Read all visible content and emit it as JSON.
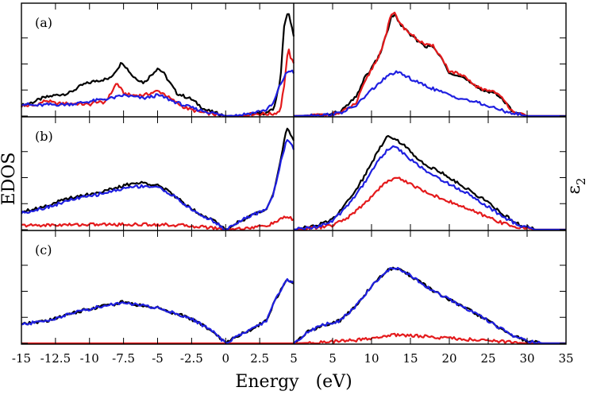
{
  "figure": {
    "xlabel": "Energy   (eV)",
    "left_ylabel": "EDOS",
    "right_ylabel": "ε",
    "right_ylabel_sub": "2"
  },
  "colors": {
    "black": "#000000",
    "red": "#e41a1c",
    "blue": "#1f1fe0"
  },
  "chart_data": [
    {
      "type": "line",
      "panel": "(a)",
      "subplot": "EDOS",
      "xlim": [
        -15,
        5
      ],
      "ylim": [
        0,
        1
      ],
      "series": [
        {
          "color": "black",
          "x": [
            -15,
            -14,
            -13.5,
            -12.5,
            -11.5,
            -10.5,
            -9.5,
            -8.5,
            -7.6,
            -6.8,
            -6,
            -5,
            -4.6,
            -3.6,
            -2.5,
            -1.5,
            -0.5,
            0,
            1,
            2,
            3,
            3.5,
            4,
            4.3,
            4.6,
            4.8,
            5
          ],
          "y": [
            0.1,
            0.14,
            0.17,
            0.2,
            0.22,
            0.3,
            0.34,
            0.36,
            0.52,
            0.38,
            0.32,
            0.46,
            0.42,
            0.22,
            0.16,
            0.06,
            0.02,
            0,
            0,
            0.02,
            0.03,
            0.06,
            0.32,
            0.88,
            1.0,
            0.88,
            0.78
          ]
        },
        {
          "color": "red",
          "x": [
            -15,
            -14,
            -13.2,
            -12.5,
            -11,
            -10,
            -9.5,
            -9,
            -8.5,
            -8,
            -7.5,
            -7,
            -6,
            -5,
            -4.6,
            -4,
            -3,
            -2,
            -1,
            0,
            1,
            2,
            3,
            3.5,
            4,
            4.3,
            4.6,
            4.8,
            5
          ],
          "y": [
            0.1,
            0.1,
            0.15,
            0.12,
            0.12,
            0.11,
            0.14,
            0.12,
            0.2,
            0.32,
            0.22,
            0.2,
            0.2,
            0.24,
            0.22,
            0.16,
            0.08,
            0.04,
            0.02,
            0,
            0,
            0.02,
            0.02,
            0.02,
            0.05,
            0.3,
            0.65,
            0.55,
            0.5
          ]
        },
        {
          "color": "blue",
          "x": [
            -15,
            -14,
            -13,
            -12,
            -11,
            -10,
            -9,
            -8,
            -7.5,
            -7,
            -6,
            -5,
            -4.5,
            -4,
            -3,
            -2,
            -1,
            0,
            1,
            2,
            3,
            3.5,
            4,
            4.5,
            4.8,
            5
          ],
          "y": [
            0.12,
            0.1,
            0.11,
            0.11,
            0.12,
            0.14,
            0.16,
            0.18,
            0.2,
            0.19,
            0.17,
            0.2,
            0.18,
            0.15,
            0.1,
            0.06,
            0.03,
            0,
            0.01,
            0.03,
            0.06,
            0.12,
            0.3,
            0.42,
            0.44,
            0.42
          ]
        }
      ]
    },
    {
      "type": "line",
      "panel": "(a)",
      "subplot": "ε2",
      "xlim": [
        0,
        35
      ],
      "ylim": [
        0,
        1
      ],
      "series": [
        {
          "color": "black",
          "x": [
            0,
            4,
            6,
            8,
            9,
            10,
            11,
            12,
            12.5,
            13,
            14,
            15,
            16,
            17,
            18,
            19,
            20,
            21,
            22,
            23,
            24,
            25,
            26,
            27,
            28,
            29,
            30,
            35
          ],
          "y": [
            0,
            0.01,
            0.04,
            0.18,
            0.35,
            0.46,
            0.58,
            0.8,
            0.95,
            0.97,
            0.85,
            0.78,
            0.72,
            0.67,
            0.66,
            0.55,
            0.42,
            0.4,
            0.36,
            0.3,
            0.25,
            0.24,
            0.22,
            0.14,
            0.06,
            0.02,
            0,
            0
          ]
        },
        {
          "color": "red",
          "x": [
            0,
            4,
            6,
            8,
            9,
            10,
            11,
            12,
            12.5,
            13,
            14,
            15,
            16,
            17,
            18,
            19,
            20,
            21,
            22,
            23,
            24,
            25,
            26,
            27,
            28,
            29,
            30,
            35
          ],
          "y": [
            0,
            0.01,
            0.03,
            0.12,
            0.3,
            0.45,
            0.58,
            0.82,
            0.97,
            0.98,
            0.86,
            0.79,
            0.73,
            0.68,
            0.67,
            0.56,
            0.43,
            0.41,
            0.37,
            0.31,
            0.26,
            0.25,
            0.23,
            0.15,
            0.06,
            0.02,
            0,
            0
          ]
        },
        {
          "color": "blue",
          "x": [
            0,
            4,
            6,
            8,
            10,
            12,
            13,
            14,
            16,
            18,
            20,
            22,
            24,
            26,
            28,
            30,
            35
          ],
          "y": [
            0,
            0.01,
            0.03,
            0.1,
            0.25,
            0.38,
            0.42,
            0.4,
            0.32,
            0.26,
            0.2,
            0.16,
            0.12,
            0.07,
            0.03,
            0,
            0
          ]
        }
      ]
    },
    {
      "type": "line",
      "panel": "(b)",
      "subplot": "EDOS",
      "xlim": [
        -15,
        5
      ],
      "ylim": [
        0,
        1
      ],
      "series": [
        {
          "color": "black",
          "x": [
            -15,
            -14,
            -13,
            -12,
            -11,
            -10,
            -9,
            -8,
            -7,
            -6,
            -5,
            -4,
            -3,
            -2,
            -1,
            0,
            1,
            2,
            3,
            3.5,
            4,
            4.5,
            5
          ],
          "y": [
            0.18,
            0.2,
            0.24,
            0.28,
            0.32,
            0.34,
            0.37,
            0.4,
            0.44,
            0.45,
            0.43,
            0.35,
            0.25,
            0.16,
            0.1,
            0,
            0.08,
            0.14,
            0.2,
            0.35,
            0.65,
            0.98,
            0.85
          ]
        },
        {
          "color": "red",
          "x": [
            -15,
            -10,
            -7,
            -5,
            -3,
            -1,
            0,
            1,
            2,
            3,
            3.5,
            4,
            4.5,
            5
          ],
          "y": [
            0.04,
            0.05,
            0.05,
            0.05,
            0.04,
            0.02,
            0,
            0.01,
            0.02,
            0.04,
            0.06,
            0.1,
            0.12,
            0.1
          ]
        },
        {
          "color": "blue",
          "x": [
            -15,
            -14,
            -13,
            -12,
            -11,
            -10,
            -9,
            -8,
            -7,
            -6,
            -5,
            -4,
            -3,
            -2,
            -1,
            0,
            1,
            2,
            3,
            3.5,
            4,
            4.5,
            5
          ],
          "y": [
            0.16,
            0.19,
            0.22,
            0.26,
            0.3,
            0.32,
            0.35,
            0.38,
            0.41,
            0.42,
            0.41,
            0.34,
            0.24,
            0.15,
            0.09,
            0,
            0.08,
            0.14,
            0.2,
            0.34,
            0.62,
            0.88,
            0.78
          ]
        }
      ]
    },
    {
      "type": "line",
      "panel": "(b)",
      "subplot": "ε2",
      "xlim": [
        0,
        35
      ],
      "ylim": [
        0,
        1
      ],
      "series": [
        {
          "color": "black",
          "x": [
            0,
            3,
            5,
            7,
            9,
            11,
            12,
            13,
            14,
            15,
            17,
            19,
            21,
            23,
            25,
            27,
            29,
            31,
            35
          ],
          "y": [
            0,
            0.04,
            0.1,
            0.28,
            0.5,
            0.78,
            0.9,
            0.88,
            0.82,
            0.75,
            0.62,
            0.55,
            0.45,
            0.36,
            0.26,
            0.14,
            0.05,
            0,
            0
          ]
        },
        {
          "color": "red",
          "x": [
            0,
            3,
            5,
            7,
            9,
            11,
            12,
            13,
            14,
            15,
            17,
            19,
            21,
            23,
            25,
            27,
            29,
            31,
            35
          ],
          "y": [
            0,
            0.02,
            0.04,
            0.12,
            0.24,
            0.4,
            0.46,
            0.5,
            0.48,
            0.44,
            0.36,
            0.3,
            0.24,
            0.18,
            0.12,
            0.06,
            0.02,
            0,
            0
          ]
        },
        {
          "color": "blue",
          "x": [
            0,
            3,
            5,
            7,
            9,
            11,
            12,
            13,
            14,
            15,
            17,
            19,
            21,
            23,
            25,
            27,
            29,
            31,
            35
          ],
          "y": [
            0,
            0.03,
            0.08,
            0.24,
            0.44,
            0.68,
            0.76,
            0.8,
            0.74,
            0.68,
            0.56,
            0.48,
            0.4,
            0.32,
            0.22,
            0.12,
            0.04,
            0,
            0
          ]
        }
      ]
    },
    {
      "type": "line",
      "panel": "(c)",
      "subplot": "EDOS",
      "xlim": [
        -15,
        5
      ],
      "ylim": [
        0,
        1
      ],
      "series": [
        {
          "color": "black",
          "x": [
            -15,
            -14,
            -13,
            -12,
            -11,
            -10,
            -9,
            -8,
            -7.5,
            -7,
            -6,
            -5,
            -4,
            -3,
            -2,
            -1,
            0,
            1,
            2,
            3,
            3.5,
            4,
            4.5,
            5
          ],
          "y": [
            0.18,
            0.2,
            0.22,
            0.26,
            0.3,
            0.33,
            0.36,
            0.38,
            0.4,
            0.38,
            0.36,
            0.34,
            0.3,
            0.26,
            0.2,
            0.12,
            0,
            0.08,
            0.14,
            0.22,
            0.38,
            0.5,
            0.62,
            0.58
          ]
        },
        {
          "color": "red",
          "x": [
            -15,
            -10,
            -5,
            -1,
            0,
            1,
            3,
            5
          ],
          "y": [
            0,
            0,
            0,
            0,
            0,
            0,
            0,
            0
          ]
        },
        {
          "color": "blue",
          "x": [
            -15,
            -14,
            -13,
            -12,
            -11,
            -10,
            -9,
            -8,
            -7.5,
            -7,
            -6,
            -5,
            -4,
            -3,
            -2,
            -1,
            0,
            1,
            2,
            3,
            3.5,
            4,
            4.5,
            5
          ],
          "y": [
            0.18,
            0.2,
            0.22,
            0.26,
            0.3,
            0.33,
            0.36,
            0.38,
            0.4,
            0.38,
            0.36,
            0.34,
            0.3,
            0.26,
            0.2,
            0.12,
            0,
            0.08,
            0.14,
            0.22,
            0.38,
            0.5,
            0.62,
            0.58
          ]
        }
      ]
    },
    {
      "type": "line",
      "panel": "(c)",
      "subplot": "ε2",
      "xlim": [
        0,
        35
      ],
      "ylim": [
        0,
        1
      ],
      "series": [
        {
          "color": "black",
          "x": [
            0,
            2,
            4,
            6,
            8,
            10,
            12,
            13,
            14,
            16,
            18,
            20,
            22,
            24,
            26,
            28,
            30,
            32,
            35
          ],
          "y": [
            0,
            0.12,
            0.18,
            0.22,
            0.36,
            0.55,
            0.7,
            0.72,
            0.7,
            0.6,
            0.5,
            0.42,
            0.34,
            0.26,
            0.17,
            0.08,
            0.02,
            0,
            0
          ]
        },
        {
          "color": "red",
          "x": [
            0,
            4,
            6,
            8,
            10,
            12,
            13,
            14,
            16,
            18,
            20,
            22,
            24,
            26,
            28,
            30,
            35
          ],
          "y": [
            0,
            0.01,
            0.02,
            0.03,
            0.05,
            0.07,
            0.08,
            0.08,
            0.07,
            0.06,
            0.05,
            0.04,
            0.03,
            0.02,
            0.01,
            0,
            0
          ]
        },
        {
          "color": "blue",
          "x": [
            0,
            2,
            4,
            6,
            8,
            10,
            12,
            13,
            14,
            16,
            18,
            20,
            22,
            24,
            26,
            28,
            30,
            32,
            35
          ],
          "y": [
            0,
            0.12,
            0.18,
            0.22,
            0.36,
            0.55,
            0.7,
            0.72,
            0.7,
            0.6,
            0.5,
            0.42,
            0.34,
            0.26,
            0.17,
            0.08,
            0.02,
            0,
            0
          ]
        }
      ]
    }
  ],
  "axes": {
    "left_x_ticks": [
      {
        "v": -15,
        "label": "-15"
      },
      {
        "v": -12.5,
        "label": "-12.5"
      },
      {
        "v": -10,
        "label": "-10"
      },
      {
        "v": -7.5,
        "label": "-7.5"
      },
      {
        "v": -5,
        "label": "-5"
      },
      {
        "v": -2.5,
        "label": "-2.5"
      },
      {
        "v": 0,
        "label": "0"
      },
      {
        "v": 2.5,
        "label": "2.5"
      },
      {
        "v": 5,
        "label": "5"
      }
    ],
    "right_x_ticks": [
      {
        "v": 0,
        "label": "0"
      },
      {
        "v": 5,
        "label": "5"
      },
      {
        "v": 10,
        "label": "10"
      },
      {
        "v": 15,
        "label": "15"
      },
      {
        "v": 20,
        "label": "20"
      },
      {
        "v": 25,
        "label": "25"
      },
      {
        "v": 30,
        "label": "30"
      },
      {
        "v": 35,
        "label": "35"
      }
    ],
    "y_ticks": [
      0,
      0.25,
      0.5,
      0.75
    ]
  }
}
